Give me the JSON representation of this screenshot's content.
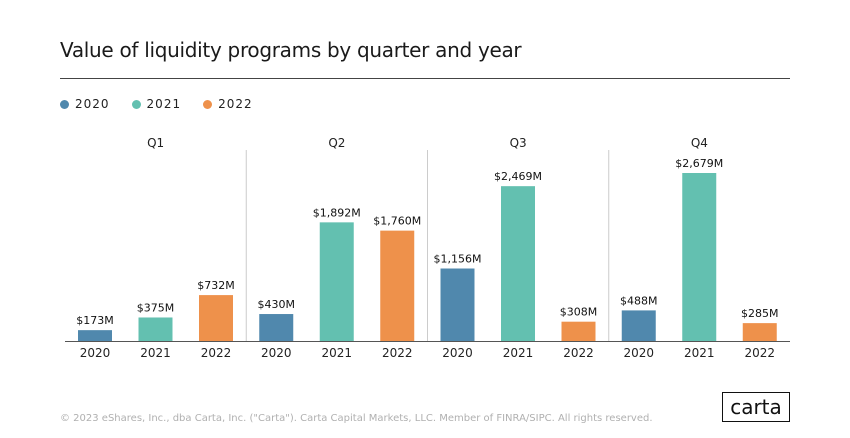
{
  "chart_data": {
    "type": "bar",
    "title": "Value of liquidity programs by quarter and year",
    "legend": [
      "2020",
      "2021",
      "2022"
    ],
    "legend_placement": "top-left",
    "colors": {
      "2020": "#5088ad",
      "2021": "#63c0b0",
      "2022": "#ee914b"
    },
    "groups": [
      {
        "label": "Q1",
        "categories": [
          "2020",
          "2021",
          "2022"
        ],
        "values": [
          173,
          375,
          732
        ],
        "data_labels": [
          "$173M",
          "$375M",
          "$732M"
        ]
      },
      {
        "label": "Q2",
        "categories": [
          "2020",
          "2021",
          "2022"
        ],
        "values": [
          430,
          1892,
          1760
        ],
        "data_labels": [
          "$430M",
          "$1,892M",
          "$1,760M"
        ]
      },
      {
        "label": "Q3",
        "categories": [
          "2020",
          "2021",
          "2022"
        ],
        "values": [
          1156,
          2469,
          308
        ],
        "data_labels": [
          "$1,156M",
          "$2,469M",
          "$308M"
        ]
      },
      {
        "label": "Q4",
        "categories": [
          "2020",
          "2021",
          "2022"
        ],
        "values": [
          488,
          2679,
          285
        ],
        "data_labels": [
          "$488M",
          "$2,679M",
          "$285M"
        ]
      }
    ],
    "unit": "$M",
    "ylim": [
      0,
      2700
    ],
    "grid": false
  },
  "footer": "© 2023 eShares, Inc., dba Carta, Inc. (\"Carta\"). Carta Capital Markets, LLC. Member of FINRA/SIPC. All rights reserved.",
  "logo": "carta"
}
